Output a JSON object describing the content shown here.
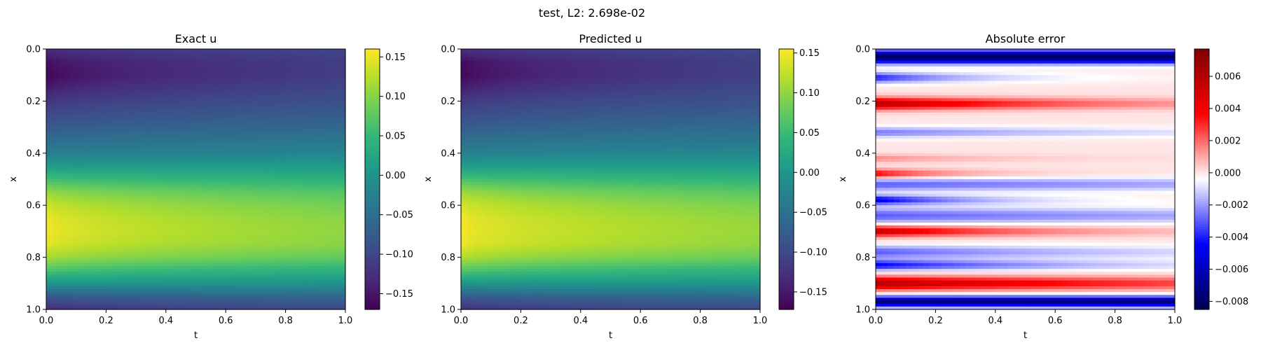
{
  "figure": {
    "title": "test, L2: 2.698e-02"
  },
  "chart_data": [
    {
      "type": "heatmap",
      "title": "Exact u",
      "xlabel": "t",
      "ylabel": "x",
      "xlim": [
        0.0,
        1.0
      ],
      "ylim": [
        1.0,
        0.0
      ],
      "xticks": [
        "0.0",
        "0.2",
        "0.4",
        "0.6",
        "0.8",
        "1.0"
      ],
      "yticks": [
        "0.0",
        "0.2",
        "0.4",
        "0.6",
        "0.8",
        "1.0"
      ],
      "colormap": "viridis",
      "colorbar": {
        "range": [
          -0.17,
          0.16
        ],
        "ticks": [
          {
            "value": 0.15,
            "label": "0.15"
          },
          {
            "value": 0.1,
            "label": "0.10"
          },
          {
            "value": 0.05,
            "label": "0.05"
          },
          {
            "value": 0.0,
            "label": "0.00"
          },
          {
            "value": -0.05,
            "label": "−0.05"
          },
          {
            "value": -0.1,
            "label": "−0.10"
          },
          {
            "value": -0.15,
            "label": "−0.15"
          }
        ]
      },
      "profile": {
        "x": [
          0.0,
          0.05,
          0.1,
          0.15,
          0.2,
          0.3,
          0.4,
          0.45,
          0.5,
          0.55,
          0.6,
          0.65,
          0.7,
          0.75,
          0.8,
          0.85,
          0.9,
          0.95,
          1.0
        ],
        "u_at_t0": [
          -0.13,
          -0.16,
          -0.17,
          -0.15,
          -0.12,
          -0.08,
          -0.03,
          0.01,
          0.06,
          0.11,
          0.14,
          0.155,
          0.16,
          0.15,
          0.12,
          0.07,
          0.0,
          -0.08,
          -0.13
        ],
        "u_at_t1": [
          -0.1,
          -0.11,
          -0.11,
          -0.1,
          -0.09,
          -0.06,
          -0.02,
          0.01,
          0.04,
          0.07,
          0.09,
          0.1,
          0.105,
          0.1,
          0.08,
          0.04,
          0.0,
          -0.06,
          -0.1
        ]
      }
    },
    {
      "type": "heatmap",
      "title": "Predicted u",
      "xlabel": "t",
      "ylabel": "x",
      "xlim": [
        0.0,
        1.0
      ],
      "ylim": [
        1.0,
        0.0
      ],
      "xticks": [
        "0.0",
        "0.2",
        "0.4",
        "0.6",
        "0.8",
        "1.0"
      ],
      "yticks": [
        "0.0",
        "0.2",
        "0.4",
        "0.6",
        "0.8",
        "1.0"
      ],
      "colormap": "viridis",
      "colorbar": {
        "range": [
          -0.172,
          0.155
        ],
        "ticks": [
          {
            "value": 0.15,
            "label": "0.15"
          },
          {
            "value": 0.1,
            "label": "0.10"
          },
          {
            "value": 0.05,
            "label": "0.05"
          },
          {
            "value": 0.0,
            "label": "0.00"
          },
          {
            "value": -0.05,
            "label": "−0.05"
          },
          {
            "value": -0.1,
            "label": "−0.10"
          },
          {
            "value": -0.15,
            "label": "−0.15"
          }
        ]
      },
      "profile": {
        "x": [
          0.0,
          0.05,
          0.1,
          0.15,
          0.2,
          0.3,
          0.4,
          0.45,
          0.5,
          0.55,
          0.6,
          0.65,
          0.7,
          0.75,
          0.8,
          0.85,
          0.9,
          0.95,
          1.0
        ],
        "u_at_t0": [
          -0.13,
          -0.165,
          -0.172,
          -0.15,
          -0.12,
          -0.08,
          -0.03,
          0.01,
          0.06,
          0.11,
          0.14,
          0.152,
          0.155,
          0.15,
          0.12,
          0.07,
          0.0,
          -0.08,
          -0.13
        ],
        "u_at_t1": [
          -0.1,
          -0.11,
          -0.11,
          -0.1,
          -0.09,
          -0.06,
          -0.02,
          0.01,
          0.04,
          0.07,
          0.09,
          0.1,
          0.105,
          0.1,
          0.08,
          0.04,
          0.0,
          -0.06,
          -0.1
        ]
      }
    },
    {
      "type": "heatmap",
      "title": "Absolute error",
      "xlabel": "t",
      "ylabel": "x",
      "xlim": [
        0.0,
        1.0
      ],
      "ylim": [
        1.0,
        0.0
      ],
      "xticks": [
        "0.0",
        "0.2",
        "0.4",
        "0.6",
        "0.8",
        "1.0"
      ],
      "yticks": [
        "0.0",
        "0.2",
        "0.4",
        "0.6",
        "0.8",
        "1.0"
      ],
      "colormap": "seismic",
      "colorbar": {
        "range": [
          -0.0085,
          0.0077
        ],
        "ticks": [
          {
            "value": 0.006,
            "label": "0.006"
          },
          {
            "value": 0.004,
            "label": "0.004"
          },
          {
            "value": 0.002,
            "label": "0.002"
          },
          {
            "value": 0.0,
            "label": "0.000"
          },
          {
            "value": -0.002,
            "label": "−0.002"
          },
          {
            "value": -0.004,
            "label": "−0.004"
          },
          {
            "value": -0.006,
            "label": "−0.006"
          },
          {
            "value": -0.008,
            "label": "−0.008"
          }
        ]
      },
      "bands": [
        {
          "x": 0.03,
          "amp": -0.008,
          "decay": 0.0,
          "spread": 0.025
        },
        {
          "x": 0.11,
          "amp": -0.004,
          "decay": 3.0,
          "spread": 0.02
        },
        {
          "x": 0.21,
          "amp": 0.006,
          "decay": 1.5,
          "spread": 0.022
        },
        {
          "x": 0.32,
          "amp": -0.0025,
          "decay": 1.0,
          "spread": 0.02
        },
        {
          "x": 0.42,
          "amp": 0.0015,
          "decay": 2.5,
          "spread": 0.015
        },
        {
          "x": 0.48,
          "amp": 0.004,
          "decay": 4.0,
          "spread": 0.018
        },
        {
          "x": 0.52,
          "amp": -0.003,
          "decay": 0.5,
          "spread": 0.025
        },
        {
          "x": 0.58,
          "amp": -0.005,
          "decay": 3.0,
          "spread": 0.018
        },
        {
          "x": 0.64,
          "amp": -0.003,
          "decay": 0.5,
          "spread": 0.03
        },
        {
          "x": 0.7,
          "amp": 0.0055,
          "decay": 2.0,
          "spread": 0.02
        },
        {
          "x": 0.78,
          "amp": -0.003,
          "decay": 1.0,
          "spread": 0.025
        },
        {
          "x": 0.83,
          "amp": -0.0045,
          "decay": 1.5,
          "spread": 0.02
        },
        {
          "x": 0.9,
          "amp": 0.006,
          "decay": 0.8,
          "spread": 0.025
        },
        {
          "x": 0.97,
          "amp": -0.0075,
          "decay": 0.0,
          "spread": 0.02
        }
      ]
    }
  ]
}
